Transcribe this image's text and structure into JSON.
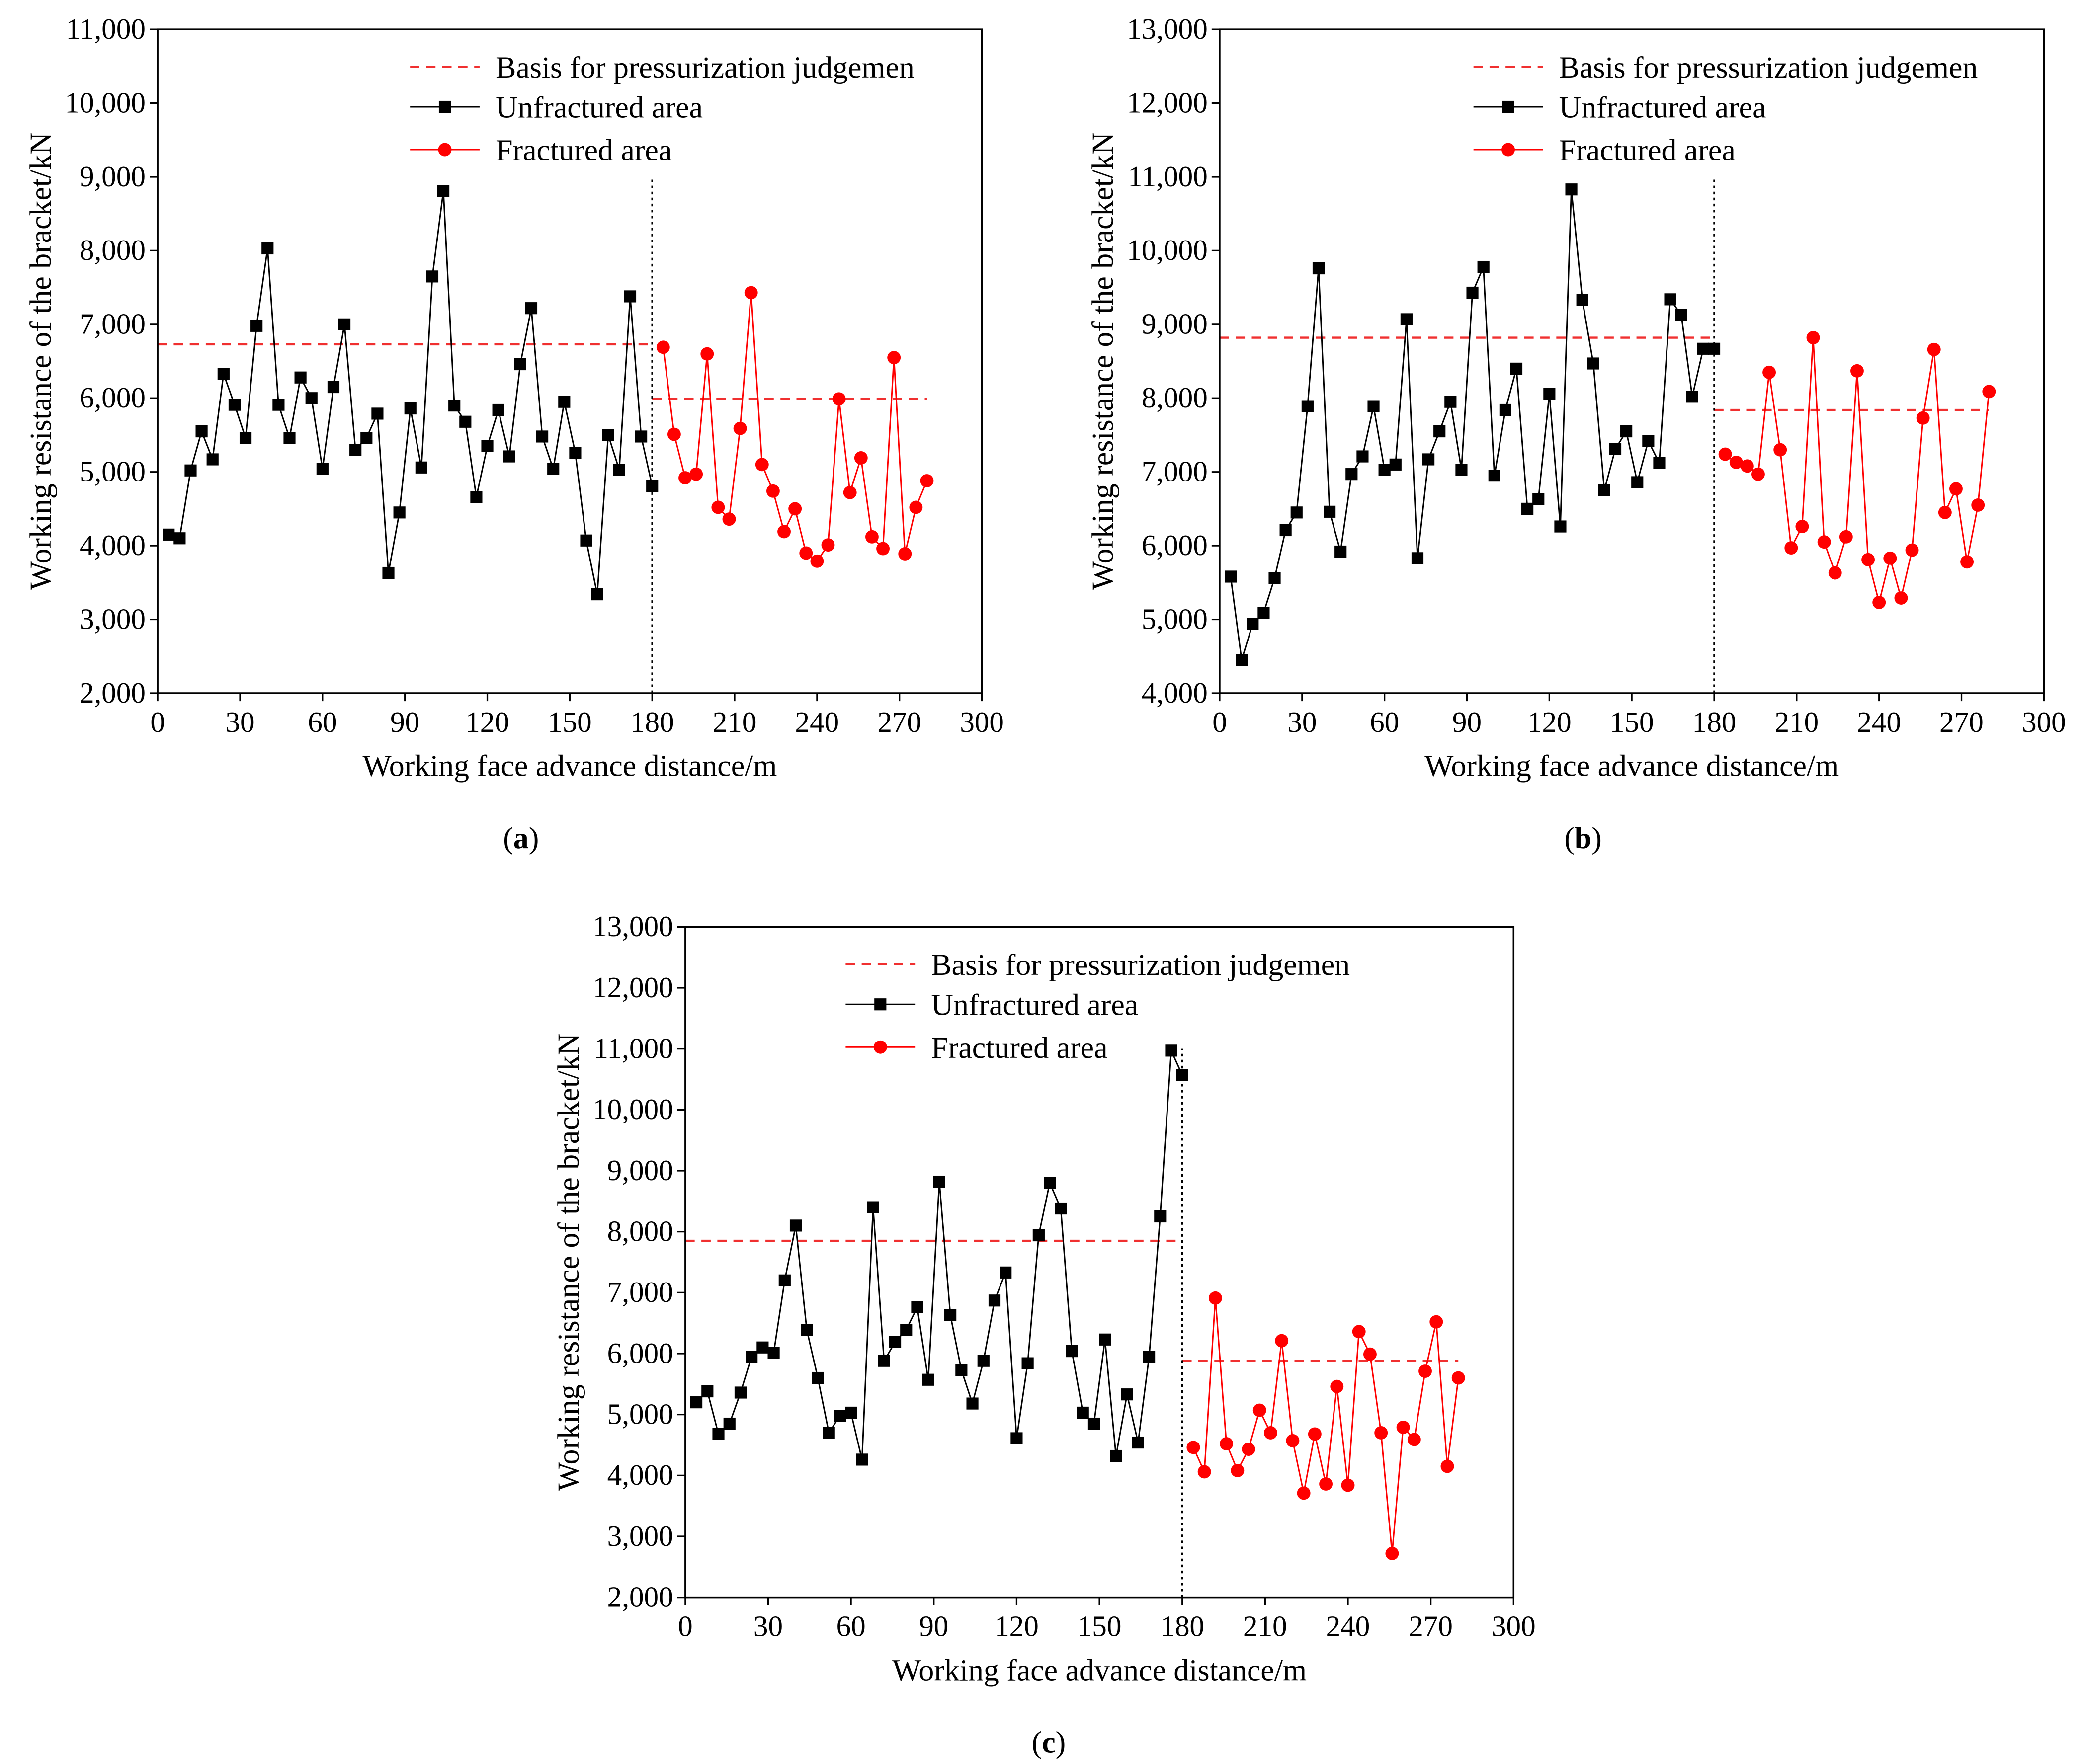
{
  "colors": {
    "unfractured": "#000000",
    "fractured": "#ff0000",
    "reference": "#f03030"
  },
  "chart_data": [
    {
      "type": "line",
      "panel_label": [
        "(",
        "a",
        ")"
      ],
      "title": "",
      "xlabel": "Working face advance distance/m",
      "ylabel": "Working resistance of the bracket/kN",
      "xlim": [
        0,
        300
      ],
      "ylim": [
        2000,
        11000
      ],
      "xticks": [
        0,
        30,
        60,
        90,
        120,
        150,
        180,
        210,
        240,
        270,
        300
      ],
      "xtick_labels": [
        "0",
        "30",
        "60",
        "90",
        "120",
        "150",
        "180",
        "210",
        "240",
        "270",
        "300"
      ],
      "yticks": [
        2000,
        3000,
        4000,
        5000,
        6000,
        7000,
        8000,
        9000,
        10000,
        11000
      ],
      "ytick_labels": [
        "2,000",
        "3,000",
        "4,000",
        "5,000",
        "6,000",
        "7,000",
        "8,000",
        "9,000",
        "10,000",
        "11,000"
      ],
      "legend_position": "top-right",
      "series": [
        {
          "name": "Unfractured area",
          "x": [
            4,
            8,
            12,
            16,
            20,
            24,
            28,
            32,
            36,
            40,
            44,
            48,
            52,
            56,
            60,
            64,
            68,
            72,
            76,
            80,
            84,
            88,
            92,
            96,
            100,
            104,
            108,
            112,
            116,
            120,
            124,
            128,
            132,
            136,
            140,
            144,
            148,
            152,
            156,
            160,
            164,
            168,
            172,
            176,
            180
          ],
          "y": [
            4150,
            4100,
            5020,
            5550,
            5170,
            6330,
            5910,
            5460,
            6980,
            8030,
            5910,
            5460,
            6280,
            6000,
            5040,
            6150,
            7000,
            5300,
            5460,
            5790,
            3630,
            4450,
            5860,
            5060,
            7650,
            8810,
            5900,
            5680,
            4660,
            5350,
            5840,
            5210,
            6460,
            7220,
            5480,
            5040,
            5950,
            5260,
            4070,
            3340,
            5500,
            5030,
            7380,
            5480,
            4810
          ]
        },
        {
          "name": "Fractured area",
          "x": [
            184,
            188,
            192,
            196,
            200,
            204,
            208,
            212,
            216,
            220,
            224,
            228,
            232,
            236,
            240,
            244,
            248,
            252,
            256,
            260,
            264,
            268,
            272,
            276,
            280
          ],
          "y": [
            6690,
            5510,
            4920,
            4970,
            6600,
            4520,
            4360,
            5590,
            7430,
            5100,
            4740,
            4190,
            4500,
            3900,
            3790,
            4010,
            5990,
            4720,
            5190,
            4120,
            3960,
            6550,
            3890,
            4520,
            4880
          ]
        }
      ],
      "reference_lines": [
        {
          "name": "Basis for pressurization judgemen",
          "segments": [
            {
              "x": [
                0,
                180
              ],
              "y": 6730
            },
            {
              "x": [
                180,
                280
              ],
              "y": 5990
            }
          ]
        }
      ],
      "divider": {
        "x": 180,
        "y_top": 9000
      }
    },
    {
      "type": "line",
      "panel_label": [
        "(",
        "b",
        ")"
      ],
      "title": "",
      "xlabel": "Working face advance distance/m",
      "ylabel": "Working resistance of the bracket/kN",
      "xlim": [
        0,
        300
      ],
      "ylim": [
        4000,
        13000
      ],
      "xticks": [
        0,
        30,
        60,
        90,
        120,
        150,
        180,
        210,
        240,
        270,
        300
      ],
      "xtick_labels": [
        "0",
        "30",
        "60",
        "90",
        "120",
        "150",
        "180",
        "210",
        "240",
        "270",
        "300"
      ],
      "yticks": [
        4000,
        5000,
        6000,
        7000,
        8000,
        9000,
        10000,
        11000,
        12000,
        13000
      ],
      "ytick_labels": [
        "4,000",
        "5,000",
        "6,000",
        "7,000",
        "8,000",
        "9,000",
        "10,000",
        "11,000",
        "12,000",
        "13,000"
      ],
      "legend_position": "top-right",
      "series": [
        {
          "name": "Unfractured area",
          "x": [
            4,
            8,
            12,
            16,
            20,
            24,
            28,
            32,
            36,
            40,
            44,
            48,
            52,
            56,
            60,
            64,
            68,
            72,
            76,
            80,
            84,
            88,
            92,
            96,
            100,
            104,
            108,
            112,
            116,
            120,
            124,
            128,
            132,
            136,
            140,
            144,
            148,
            152,
            156,
            160,
            164,
            168,
            172,
            176,
            180
          ],
          "y": [
            5580,
            4450,
            4940,
            5090,
            5560,
            6210,
            6450,
            7890,
            9760,
            6460,
            5920,
            6970,
            7210,
            7890,
            7030,
            7100,
            9070,
            5830,
            7170,
            7550,
            7950,
            7030,
            9430,
            9780,
            6950,
            7840,
            8400,
            6500,
            6630,
            8060,
            6260,
            10830,
            9330,
            8470,
            6750,
            7310,
            7550,
            6860,
            7420,
            7120,
            9340,
            9130,
            8020,
            8670,
            8670
          ]
        },
        {
          "name": "Fractured area",
          "x": [
            184,
            188,
            192,
            196,
            200,
            204,
            208,
            212,
            216,
            220,
            224,
            228,
            232,
            236,
            240,
            244,
            248,
            252,
            256,
            260,
            264,
            268,
            272,
            276,
            280
          ],
          "y": [
            7240,
            7130,
            7080,
            6970,
            8350,
            7300,
            5970,
            6260,
            8820,
            6050,
            5630,
            6120,
            8370,
            5810,
            5230,
            5830,
            5290,
            5940,
            7730,
            8660,
            6450,
            6770,
            5780,
            6550,
            8090
          ]
        }
      ],
      "reference_lines": [
        {
          "name": "Basis for pressurization judgemen",
          "segments": [
            {
              "x": [
                0,
                180
              ],
              "y": 8820
            },
            {
              "x": [
                180,
                280
              ],
              "y": 7840
            }
          ]
        }
      ],
      "divider": {
        "x": 180,
        "y_top": 11000
      }
    },
    {
      "type": "line",
      "panel_label": [
        "(",
        "c",
        ")"
      ],
      "title": "",
      "xlabel": "Working face advance distance/m",
      "ylabel": "Working resistance of the bracket/kN",
      "xlim": [
        0,
        300
      ],
      "ylim": [
        2000,
        13000
      ],
      "xticks": [
        0,
        30,
        60,
        90,
        120,
        150,
        180,
        210,
        240,
        270,
        300
      ],
      "xtick_labels": [
        "0",
        "30",
        "60",
        "90",
        "120",
        "150",
        "180",
        "210",
        "240",
        "270",
        "300"
      ],
      "yticks": [
        2000,
        3000,
        4000,
        5000,
        6000,
        7000,
        8000,
        9000,
        10000,
        11000,
        12000,
        13000
      ],
      "ytick_labels": [
        "2,000",
        "3,000",
        "4,000",
        "5,000",
        "6,000",
        "7,000",
        "8,000",
        "9,000",
        "10,000",
        "11,000",
        "12,000",
        "13,000"
      ],
      "legend_position": "top-right",
      "series": [
        {
          "name": "Unfractured area",
          "x": [
            4,
            8,
            12,
            16,
            20,
            24,
            28,
            32,
            36,
            40,
            44,
            48,
            52,
            56,
            60,
            64,
            68,
            72,
            76,
            80,
            84,
            88,
            92,
            96,
            100,
            104,
            108,
            112,
            116,
            120,
            124,
            128,
            132,
            136,
            140,
            144,
            148,
            152,
            156,
            160,
            164,
            168,
            172,
            176,
            180
          ],
          "y": [
            5200,
            5380,
            4680,
            4850,
            5360,
            5950,
            6100,
            6010,
            7200,
            8100,
            6390,
            5600,
            4700,
            4980,
            5030,
            4260,
            8400,
            5880,
            6190,
            6390,
            6760,
            5570,
            8820,
            6630,
            5730,
            5180,
            5880,
            6870,
            7330,
            4610,
            5840,
            7940,
            8800,
            8380,
            6040,
            5030,
            4850,
            6230,
            4320,
            5330,
            4540,
            5950,
            8250,
            10970,
            10570
          ]
        },
        {
          "name": "Fractured area",
          "x": [
            184,
            188,
            192,
            196,
            200,
            204,
            208,
            212,
            216,
            220,
            224,
            228,
            232,
            236,
            240,
            244,
            248,
            252,
            256,
            260,
            264,
            268,
            272,
            276,
            280
          ],
          "y": [
            4460,
            4060,
            6910,
            4520,
            4080,
            4430,
            5070,
            4700,
            6210,
            4570,
            3710,
            4680,
            3860,
            5460,
            3840,
            6360,
            5990,
            4700,
            2720,
            4790,
            4590,
            5710,
            6520,
            4150,
            5600
          ]
        }
      ],
      "reference_lines": [
        {
          "name": "Basis for pressurization judgemen",
          "segments": [
            {
              "x": [
                0,
                180
              ],
              "y": 7850
            },
            {
              "x": [
                180,
                280
              ],
              "y": 5880
            }
          ]
        }
      ],
      "divider": {
        "x": 180,
        "y_top": 11000
      }
    }
  ]
}
